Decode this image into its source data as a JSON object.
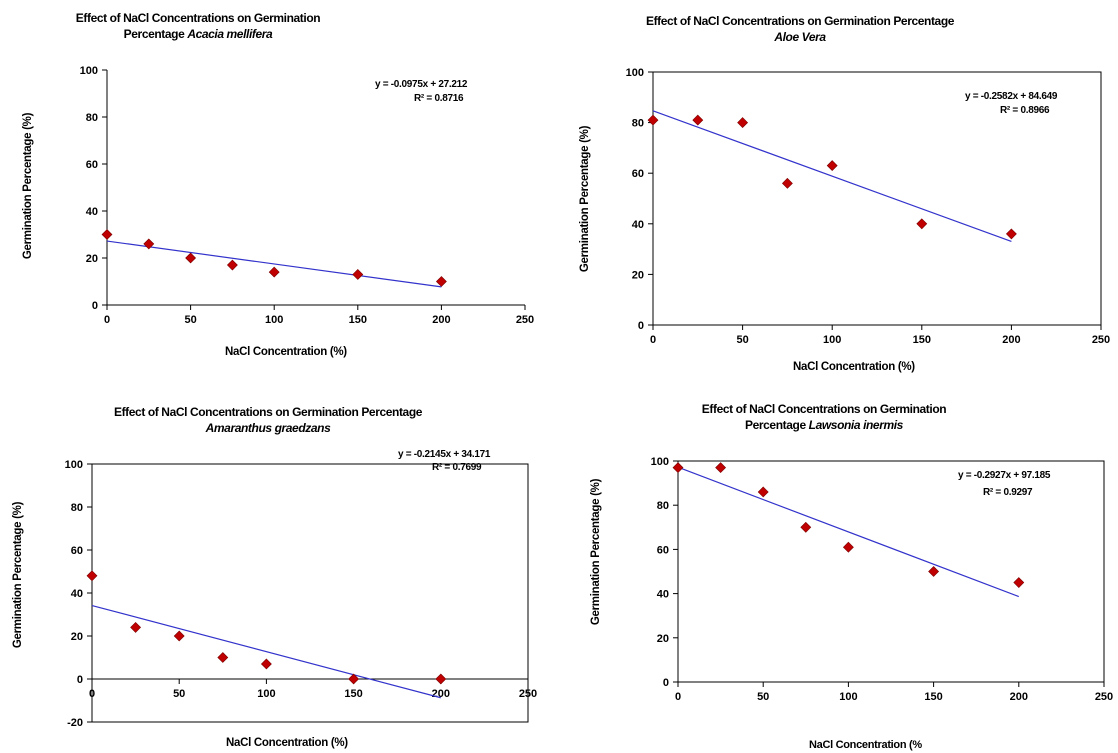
{
  "chart_data": [
    {
      "type": "scatter",
      "title_line1": "Effect of NaCl Concentrations on Germination",
      "title_line2": "Percentage ",
      "species": "Acacia mellifera",
      "xlabel": "NaCl Concentration (%)",
      "ylabel": "Germination  Percentage (%)",
      "xlim": [
        0,
        250
      ],
      "ylim": [
        0,
        100
      ],
      "xticks": [
        0,
        50,
        100,
        150,
        200,
        250
      ],
      "yticks": [
        0,
        20,
        40,
        60,
        80,
        100
      ],
      "x": [
        0,
        25,
        50,
        75,
        100,
        150,
        200
      ],
      "y": [
        30,
        26,
        20,
        17,
        14,
        13,
        10
      ],
      "trendline": {
        "equation": "y = -0.0975x + 27.212",
        "r2": "R² = 0.8716",
        "slope": -0.0975,
        "intercept": 27.212
      },
      "grid": false,
      "legend": "none",
      "marker_color": "#C00000",
      "line_color": "#3333CC"
    },
    {
      "type": "scatter",
      "title_line1": "Effect of NaCl Concentrations on Germination Percentage",
      "title_line2": "",
      "species": "Aloe Vera",
      "xlabel": "NaCl Concentration (%)",
      "ylabel": "Germination Percentage (%)",
      "xlim": [
        0,
        250
      ],
      "ylim": [
        0,
        100
      ],
      "xticks": [
        0,
        50,
        100,
        150,
        200,
        250
      ],
      "yticks": [
        0,
        20,
        40,
        60,
        80,
        100
      ],
      "x": [
        0,
        25,
        50,
        75,
        100,
        150,
        200
      ],
      "y": [
        81,
        81,
        80,
        56,
        63,
        40,
        36
      ],
      "trendline": {
        "equation": "y = -0.2582x + 84.649",
        "r2": "R² = 0.8966",
        "slope": -0.2582,
        "intercept": 84.649
      },
      "grid": false,
      "legend": "none",
      "marker_color": "#C00000",
      "line_color": "#3333CC"
    },
    {
      "type": "scatter",
      "title_line1": "Effect of NaCl Concentrations on Germination Percentage",
      "title_line2": "",
      "species": "Amaranthus graedzans",
      "xlabel": "NaCl Concentration (%)",
      "ylabel": "Germination Percentage (%)",
      "xlim": [
        0,
        250
      ],
      "ylim": [
        -20,
        100
      ],
      "xticks": [
        0,
        50,
        100,
        150,
        200,
        250
      ],
      "yticks": [
        -20,
        0,
        20,
        40,
        60,
        80,
        100
      ],
      "x": [
        0,
        25,
        50,
        75,
        100,
        150,
        200
      ],
      "y": [
        48,
        24,
        20,
        10,
        7,
        0,
        0
      ],
      "trendline": {
        "equation": "y = -0.2145x + 34.171",
        "r2": "R² = 0.7699",
        "slope": -0.2145,
        "intercept": 34.171
      },
      "grid": false,
      "legend": "none",
      "marker_color": "#C00000",
      "line_color": "#3333CC"
    },
    {
      "type": "scatter",
      "title_line1": "Effect of NaCl Concentrations on Germination",
      "title_line2": "Percentage ",
      "species": "Lawsonia inermis",
      "xlabel": "NaCl Concentration (%",
      "ylabel": "Germination  Percentage (%)",
      "xlim": [
        0,
        250
      ],
      "ylim": [
        0,
        100
      ],
      "xticks": [
        0,
        50,
        100,
        150,
        200,
        250
      ],
      "yticks": [
        0,
        20,
        40,
        60,
        80,
        100
      ],
      "x": [
        0,
        25,
        50,
        75,
        100,
        150,
        200
      ],
      "y": [
        97,
        97,
        86,
        70,
        61,
        50,
        45
      ],
      "trendline": {
        "equation": "y = -0.2927x + 97.185",
        "r2": "R² = 0.9297",
        "slope": -0.2927,
        "intercept": 97.185
      },
      "grid": false,
      "legend": "none",
      "marker_color": "#C00000",
      "line_color": "#3333CC"
    }
  ]
}
